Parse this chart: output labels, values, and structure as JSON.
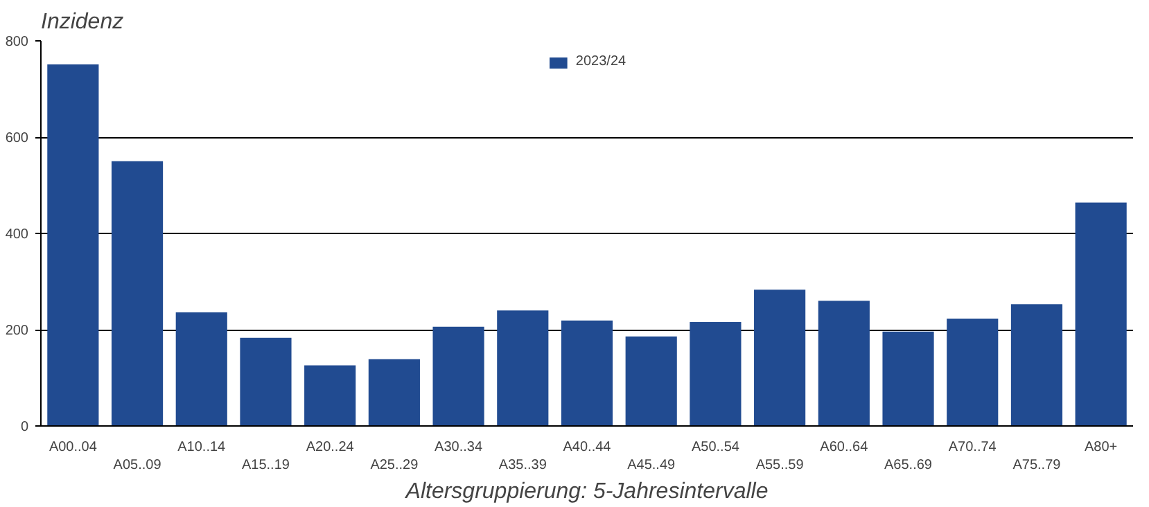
{
  "chart_data": {
    "type": "bar",
    "ylabel": "Inzidenz",
    "xlabel": "Altersgruppierung: 5-Jahresintervalle",
    "categories": [
      "A00..04",
      "A05..09",
      "A10..14",
      "A15..19",
      "A20..24",
      "A25..29",
      "A30..34",
      "A35..39",
      "A40..44",
      "A45..49",
      "A50..54",
      "A55..59",
      "A60..64",
      "A65..69",
      "A70..74",
      "A75..79",
      "A80+"
    ],
    "series": [
      {
        "name": "2023/24",
        "color": "#214b91",
        "values": [
          751,
          550,
          236,
          183,
          126,
          139,
          206,
          240,
          219,
          186,
          216,
          283,
          260,
          196,
          223,
          253,
          464
        ]
      }
    ],
    "ylim": [
      0,
      800
    ],
    "yticks": [
      0,
      200,
      400,
      600,
      800
    ],
    "grid": "y",
    "legend": "top"
  }
}
